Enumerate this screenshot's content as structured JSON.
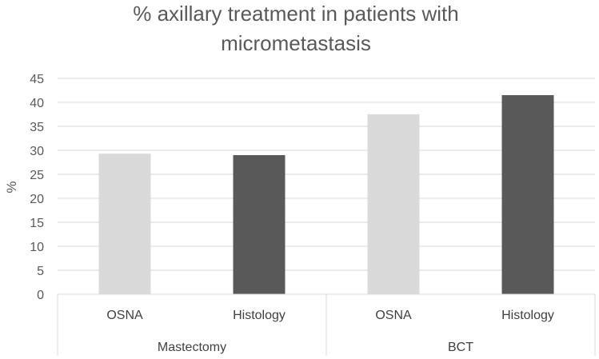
{
  "chart_data": {
    "type": "bar",
    "title_lines": [
      "% axillary treatment in patients with",
      "micrometastasis"
    ],
    "ylabel": "%",
    "xlabel": "",
    "ylim": [
      0,
      45
    ],
    "yticks": [
      0,
      5,
      10,
      15,
      20,
      25,
      30,
      35,
      40,
      45
    ],
    "grid": true,
    "legend": "none",
    "groups": [
      {
        "label": "Mastectomy",
        "categories": [
          "OSNA",
          "Histology"
        ]
      },
      {
        "label": "BCT",
        "categories": [
          "OSNA",
          "Histology"
        ]
      }
    ],
    "bars": [
      {
        "group": "Mastectomy",
        "category": "OSNA",
        "value": 29.3,
        "color": "#d9d9d9"
      },
      {
        "group": "Mastectomy",
        "category": "Histology",
        "value": 29.0,
        "color": "#595959"
      },
      {
        "group": "BCT",
        "category": "OSNA",
        "value": 37.5,
        "color": "#d9d9d9"
      },
      {
        "group": "BCT",
        "category": "Histology",
        "value": 41.5,
        "color": "#595959"
      }
    ]
  }
}
